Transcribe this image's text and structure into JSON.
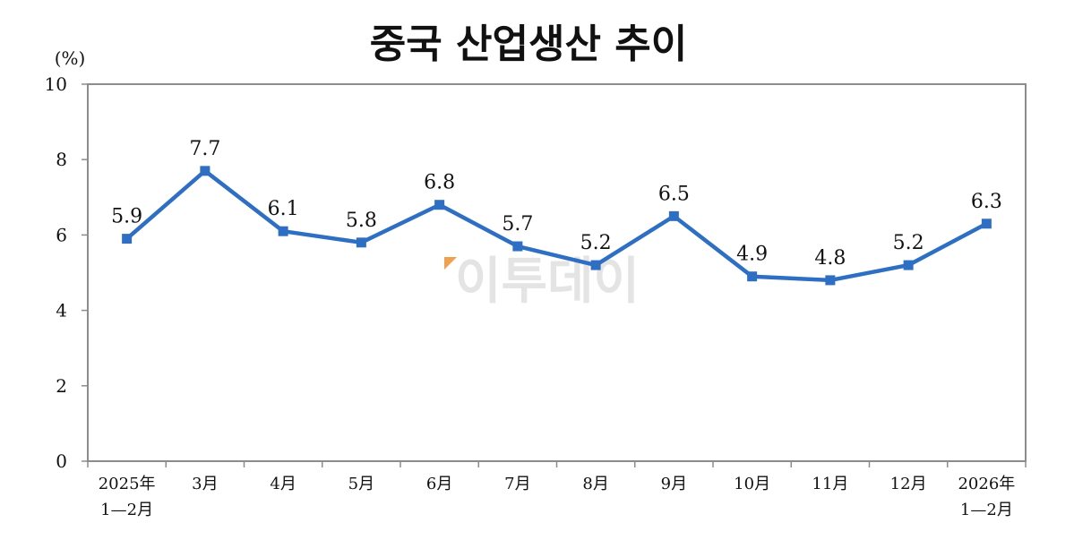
{
  "chart_data": {
    "type": "line",
    "title": "중국 산업생산 추이",
    "unit_label": "(%)",
    "ylim": [
      0,
      10
    ],
    "yticks": [
      0,
      2,
      4,
      6,
      8,
      10
    ],
    "categories": [
      [
        "2025年",
        "1—2月"
      ],
      [
        "3月"
      ],
      [
        "4月"
      ],
      [
        "5月"
      ],
      [
        "6月"
      ],
      [
        "7月"
      ],
      [
        "8月"
      ],
      [
        "9月"
      ],
      [
        "10月"
      ],
      [
        "11月"
      ],
      [
        "12月"
      ],
      [
        "2026年",
        "1—2月"
      ]
    ],
    "series": [
      {
        "values": [
          5.9,
          7.7,
          6.1,
          5.8,
          6.8,
          5.7,
          5.2,
          6.5,
          4.9,
          4.8,
          5.2,
          6.3
        ],
        "color": "#2e6fc4"
      }
    ],
    "grid": false,
    "legend": "none"
  },
  "watermark": {
    "text": "이투데이",
    "accent_color": "#f0a050"
  },
  "colors": {
    "line": "#2e6fc4",
    "frame": "#8c8c8c"
  }
}
